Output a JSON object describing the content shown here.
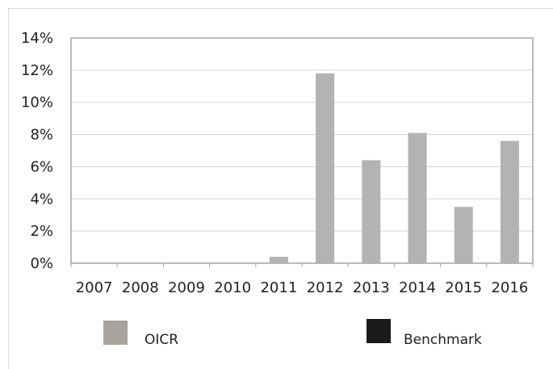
{
  "chart_data": {
    "type": "bar",
    "title": "",
    "xlabel": "",
    "ylabel": "",
    "categories": [
      "2007",
      "2008",
      "2009",
      "2010",
      "2011",
      "2012",
      "2013",
      "2014",
      "2015",
      "2016"
    ],
    "series": [
      {
        "name": "OICR",
        "color": "#b3b3b3",
        "values": [
          0,
          0,
          0,
          0,
          0.4,
          11.8,
          6.4,
          8.1,
          3.5,
          7.6
        ]
      },
      {
        "name": "Benchmark",
        "color": "#1a1a1a",
        "values": [
          0,
          0,
          0,
          0,
          0,
          0,
          0,
          0,
          0,
          0
        ]
      }
    ],
    "ylim": [
      0,
      14
    ],
    "yticks": [
      0,
      2,
      4,
      6,
      8,
      10,
      12,
      14
    ],
    "ytick_labels": [
      "0%",
      "2%",
      "4%",
      "6%",
      "8%",
      "10%",
      "12%",
      "14%"
    ],
    "grid": true,
    "legend_position": "bottom",
    "legend": [
      {
        "label": "OICR",
        "swatch_color": "#a8a39c"
      },
      {
        "label": "Benchmark",
        "swatch_color": "#1a1a1a"
      }
    ]
  }
}
